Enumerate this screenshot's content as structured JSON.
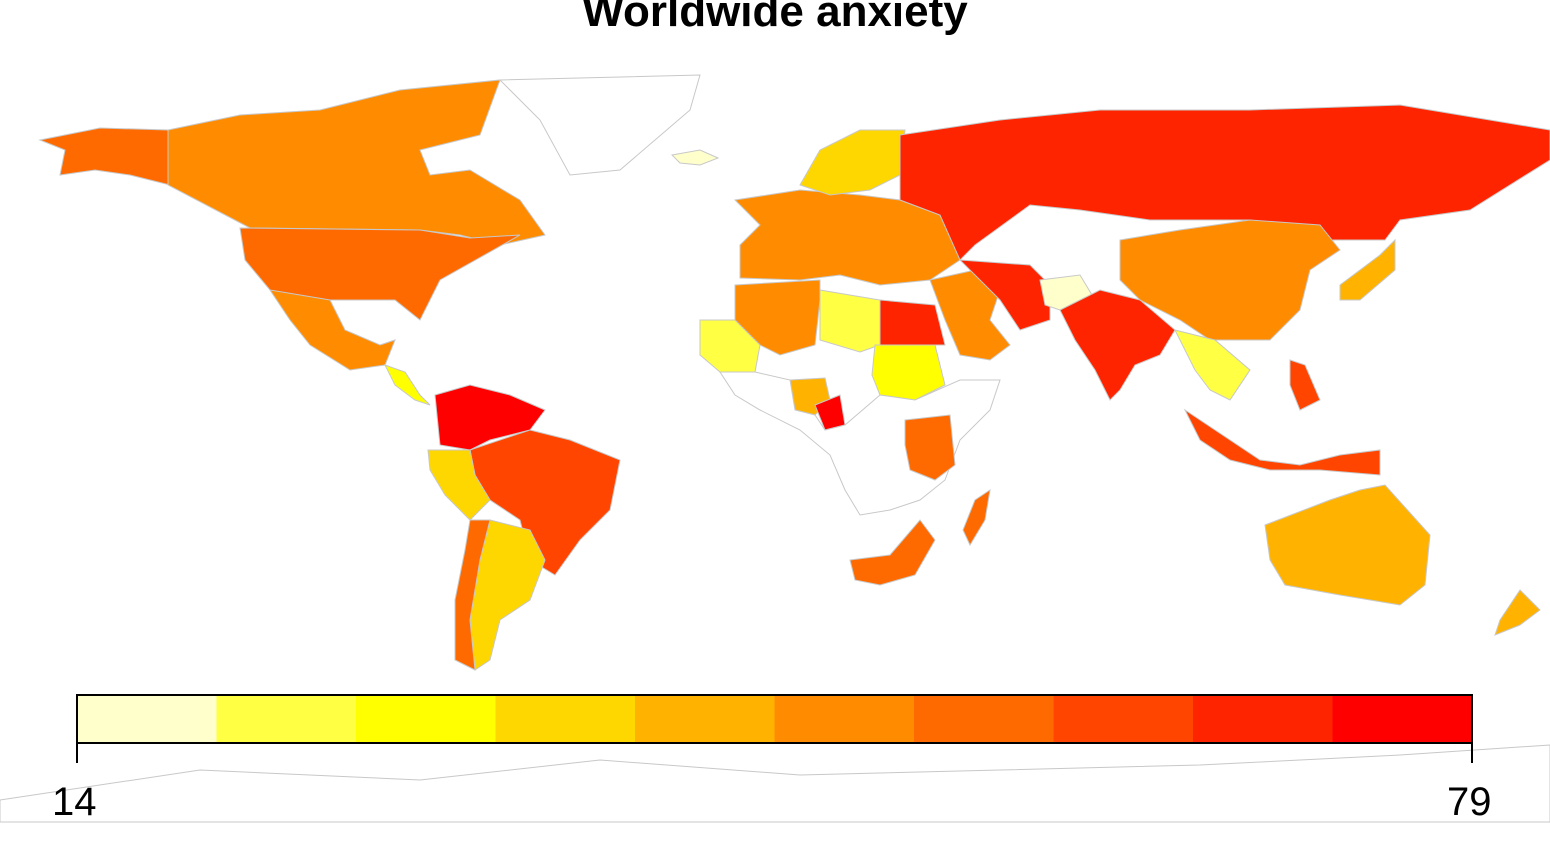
{
  "title": "Worldwide anxiety",
  "legend": {
    "min_label": "14",
    "max_label": "79",
    "colors": [
      "#ffffcc",
      "#ffff44",
      "#ffff00",
      "#ffd700",
      "#ffb300",
      "#ff8c00",
      "#ff6a00",
      "#ff4500",
      "#ff2400",
      "#ff0000"
    ]
  },
  "regions": [
    {
      "name": "canada",
      "bin": 5
    },
    {
      "name": "usa",
      "bin": 6
    },
    {
      "name": "alaska",
      "bin": 6
    },
    {
      "name": "mexico",
      "bin": 5
    },
    {
      "name": "greenland",
      "bin": null
    },
    {
      "name": "central-america",
      "bin": 2
    },
    {
      "name": "colombia-venezuela",
      "bin": 9
    },
    {
      "name": "brazil",
      "bin": 7
    },
    {
      "name": "peru",
      "bin": 3
    },
    {
      "name": "argentina",
      "bin": 3
    },
    {
      "name": "chile",
      "bin": 6
    },
    {
      "name": "russia",
      "bin": 8
    },
    {
      "name": "china",
      "bin": 5
    },
    {
      "name": "india",
      "bin": 8
    },
    {
      "name": "australia",
      "bin": 4
    },
    {
      "name": "europe",
      "bin": 5
    },
    {
      "name": "scandinavia",
      "bin": 3
    },
    {
      "name": "north-africa",
      "bin": 5
    },
    {
      "name": "libya",
      "bin": 1
    },
    {
      "name": "egypt",
      "bin": 8
    },
    {
      "name": "sudan",
      "bin": 2
    },
    {
      "name": "west-africa",
      "bin": 1
    },
    {
      "name": "nigeria",
      "bin": 4
    },
    {
      "name": "cameroon",
      "bin": 9
    },
    {
      "name": "east-africa",
      "bin": 6
    },
    {
      "name": "south-africa",
      "bin": 6
    },
    {
      "name": "madagascar",
      "bin": 6
    },
    {
      "name": "middle-east",
      "bin": 5
    },
    {
      "name": "iran",
      "bin": 8
    },
    {
      "name": "afghanistan",
      "bin": 0
    },
    {
      "name": "southeast-asia",
      "bin": 1
    },
    {
      "name": "indonesia",
      "bin": 7
    },
    {
      "name": "japan",
      "bin": 4
    },
    {
      "name": "new-zealand",
      "bin": 4
    },
    {
      "name": "iceland",
      "bin": 0
    }
  ]
}
